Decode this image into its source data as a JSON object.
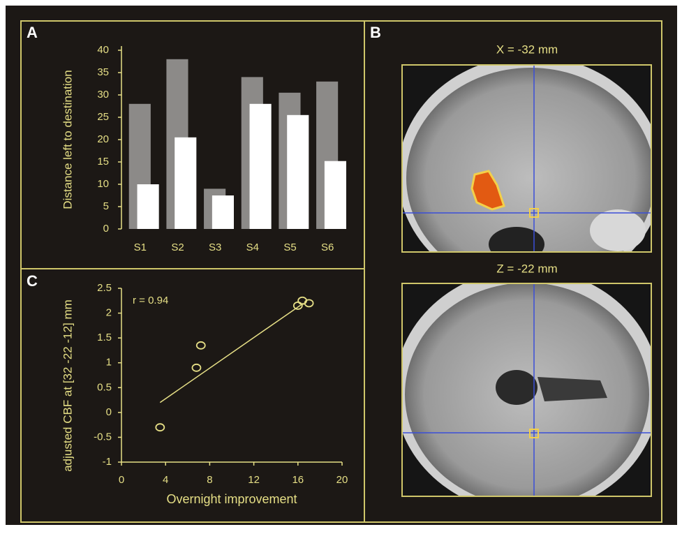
{
  "panel_labels": [
    "A",
    "B",
    "C"
  ],
  "brain_slices": [
    {
      "label": "X = -32 mm"
    },
    {
      "label": "Z = -22 mm"
    }
  ],
  "chart_data": [
    {
      "type": "bar",
      "ylabel": "Distance left to destination",
      "categories": [
        "S1",
        "S2",
        "S3",
        "S4",
        "S5",
        "S6"
      ],
      "series": [
        {
          "color": "#8c8a88",
          "values": [
            28,
            38,
            9,
            34,
            30.5,
            33
          ]
        },
        {
          "color": "#ffffff",
          "values": [
            10,
            20.5,
            7.5,
            28,
            25.5,
            15.2
          ]
        }
      ],
      "ylim": [
        0,
        40
      ],
      "yticks": [
        0,
        5,
        10,
        15,
        20,
        25,
        30,
        35,
        40
      ]
    },
    {
      "type": "scatter",
      "xlabel": "Overnight improvement",
      "ylabel": "adjusted CBF at [32 -22 -12] mm",
      "annotation": "r = 0.94",
      "x": [
        3.5,
        6.8,
        7.2,
        16,
        16.4,
        17
      ],
      "values": [
        -0.3,
        0.9,
        1.35,
        2.15,
        2.25,
        2.2
      ],
      "fit_line": {
        "x": [
          3.5,
          16.5
        ],
        "y": [
          0.2,
          2.2
        ]
      },
      "color": "#e6df86",
      "xlim": [
        0,
        20
      ],
      "xticks": [
        0,
        4,
        8,
        12,
        16,
        20
      ],
      "ylim": [
        -1,
        2.5
      ],
      "yticks": [
        -1,
        -0.5,
        0,
        0.5,
        1,
        1.5,
        2,
        2.5
      ]
    }
  ]
}
